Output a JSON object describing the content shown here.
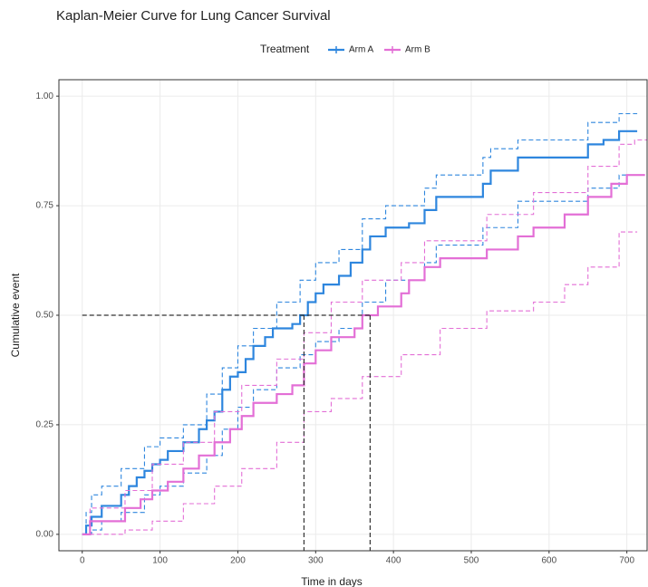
{
  "chart_data": {
    "type": "step",
    "title": "Kaplan-Meier Curve for Lung Cancer Survival",
    "xlabel": "Time in days",
    "ylabel": "Cumulative event",
    "legend_title": "Treatment",
    "legend_position": "top",
    "grid": true,
    "xlim": [
      -30,
      726
    ],
    "ylim": [
      -0.0375,
      1.0375
    ],
    "xticks": [
      0,
      100,
      200,
      300,
      400,
      500,
      600,
      700
    ],
    "yticks": [
      {
        "value": 0,
        "label": "0.00"
      },
      {
        "value": 0.25,
        "label": "0.25"
      },
      {
        "value": 0.5,
        "label": "0.50"
      },
      {
        "value": 0.75,
        "label": "0.75"
      },
      {
        "value": 1,
        "label": "1.00"
      }
    ],
    "reference": {
      "y": 0.5,
      "x": [
        285,
        370
      ]
    },
    "series": [
      {
        "name": "Arm A",
        "color": "#2e86de",
        "x": [
          0,
          5,
          12,
          25,
          50,
          60,
          70,
          80,
          90,
          100,
          110,
          130,
          150,
          160,
          170,
          180,
          190,
          200,
          210,
          220,
          235,
          245,
          270,
          280,
          290,
          300,
          310,
          330,
          345,
          360,
          370,
          390,
          420,
          440,
          455,
          515,
          525,
          560,
          650,
          670,
          690
        ],
        "values": [
          0,
          0.02,
          0.04,
          0.065,
          0.09,
          0.11,
          0.13,
          0.145,
          0.16,
          0.17,
          0.19,
          0.21,
          0.24,
          0.26,
          0.28,
          0.33,
          0.36,
          0.37,
          0.4,
          0.43,
          0.45,
          0.47,
          0.48,
          0.5,
          0.53,
          0.55,
          0.57,
          0.59,
          0.62,
          0.65,
          0.68,
          0.7,
          0.71,
          0.74,
          0.77,
          0.8,
          0.83,
          0.86,
          0.89,
          0.9,
          0.92
        ],
        "upper": {
          "x": [
            0,
            5,
            12,
            25,
            50,
            80,
            100,
            130,
            160,
            180,
            200,
            220,
            250,
            280,
            300,
            330,
            360,
            390,
            440,
            455,
            515,
            525,
            560,
            650,
            690
          ],
          "values": [
            0,
            0.05,
            0.09,
            0.11,
            0.15,
            0.2,
            0.22,
            0.25,
            0.32,
            0.38,
            0.43,
            0.47,
            0.53,
            0.58,
            0.62,
            0.65,
            0.72,
            0.75,
            0.79,
            0.82,
            0.86,
            0.88,
            0.9,
            0.94,
            0.96
          ]
        },
        "lower": {
          "x": [
            0,
            12,
            25,
            50,
            80,
            100,
            130,
            160,
            180,
            200,
            220,
            250,
            280,
            300,
            330,
            360,
            390,
            440,
            455,
            515,
            560,
            650,
            690
          ],
          "values": [
            0,
            0.01,
            0.03,
            0.05,
            0.09,
            0.11,
            0.14,
            0.18,
            0.24,
            0.29,
            0.33,
            0.38,
            0.41,
            0.44,
            0.47,
            0.53,
            0.58,
            0.62,
            0.66,
            0.7,
            0.76,
            0.79,
            0.82
          ]
        }
      },
      {
        "name": "Arm B",
        "color": "#e36fd6",
        "x": [
          0,
          10,
          55,
          75,
          90,
          110,
          130,
          150,
          170,
          190,
          205,
          220,
          250,
          270,
          285,
          300,
          320,
          350,
          360,
          380,
          410,
          420,
          440,
          460,
          520,
          560,
          580,
          620,
          650,
          680,
          700
        ],
        "values": [
          0,
          0.03,
          0.06,
          0.08,
          0.1,
          0.12,
          0.15,
          0.18,
          0.21,
          0.24,
          0.27,
          0.3,
          0.32,
          0.34,
          0.39,
          0.42,
          0.45,
          0.47,
          0.5,
          0.52,
          0.55,
          0.58,
          0.61,
          0.63,
          0.65,
          0.68,
          0.7,
          0.73,
          0.77,
          0.8,
          0.82
        ],
        "upper": {
          "x": [
            0,
            10,
            55,
            90,
            130,
            170,
            205,
            250,
            285,
            320,
            360,
            410,
            440,
            520,
            580,
            650,
            690,
            710
          ],
          "values": [
            0,
            0.06,
            0.1,
            0.16,
            0.21,
            0.28,
            0.34,
            0.4,
            0.46,
            0.53,
            0.58,
            0.62,
            0.67,
            0.73,
            0.78,
            0.84,
            0.89,
            0.9
          ]
        },
        "lower": {
          "x": [
            0,
            55,
            90,
            130,
            170,
            205,
            250,
            285,
            320,
            360,
            410,
            460,
            520,
            580,
            620,
            650,
            690
          ],
          "values": [
            0,
            0.01,
            0.03,
            0.07,
            0.11,
            0.15,
            0.21,
            0.28,
            0.31,
            0.36,
            0.41,
            0.47,
            0.51,
            0.53,
            0.57,
            0.61,
            0.69
          ]
        }
      }
    ]
  }
}
